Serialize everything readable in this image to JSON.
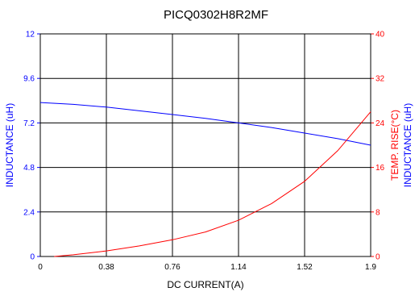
{
  "chart_data": {
    "type": "line",
    "title": "PICQ0302H8R2MF",
    "xlabel": "DC CURRENT(A)",
    "ylabel_left": "INDUCTANCE (uH)",
    "ylabel_right_temp": "TEMP. RISE(°C)",
    "ylabel_right_ind": "INDUCTANCE (uH)",
    "xlim": [
      0,
      1.9
    ],
    "ylim_left": [
      0,
      12
    ],
    "ylim_right": [
      0,
      40
    ],
    "x_ticks": [
      "0",
      "0.38",
      "0.76",
      "1.14",
      "1.52",
      "1.9"
    ],
    "y_ticks_left": [
      "0",
      "2.4",
      "4.8",
      "7.2",
      "9.6",
      "12"
    ],
    "y_ticks_right": [
      "0",
      "8",
      "16",
      "24",
      "32",
      "40"
    ],
    "grid": true,
    "series": [
      {
        "axis": "left",
        "color": "#0000ff",
        "x": [
          0,
          0.19,
          0.38,
          0.57,
          0.76,
          0.95,
          1.14,
          1.33,
          1.52,
          1.71,
          1.9
        ],
        "y": [
          8.3,
          8.2,
          8.05,
          7.85,
          7.65,
          7.45,
          7.2,
          6.95,
          6.65,
          6.35,
          6.0
        ]
      },
      {
        "axis": "right",
        "color": "#ff0000",
        "x": [
          0.08,
          0.19,
          0.38,
          0.57,
          0.76,
          0.95,
          1.14,
          1.33,
          1.52,
          1.71,
          1.9
        ],
        "y": [
          0,
          0.3,
          1.0,
          1.9,
          3.0,
          4.4,
          6.5,
          9.5,
          13.5,
          19.0,
          26.0
        ]
      }
    ]
  },
  "colors": {
    "left_axis": "#0000ff",
    "right_axis": "#ff0000",
    "grid": "#000000"
  }
}
